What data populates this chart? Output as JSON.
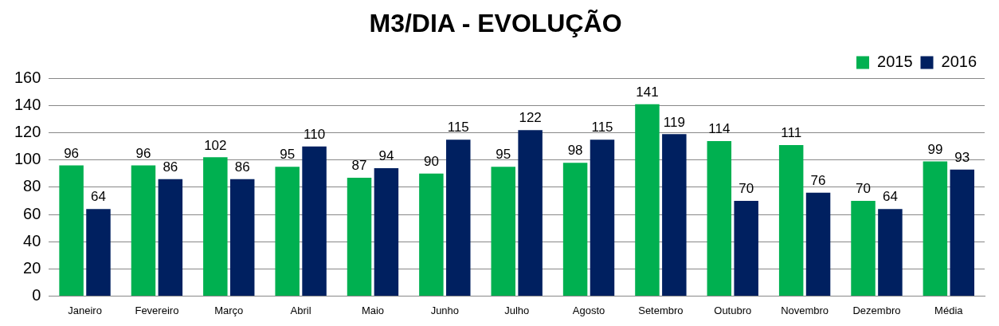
{
  "chart_data": {
    "type": "bar",
    "title": "M3/DIA - EVOLUÇÃO",
    "categories": [
      "Janeiro",
      "Fevereiro",
      "Março",
      "Abril",
      "Maio",
      "Junho",
      "Julho",
      "Agosto",
      "Setembro",
      "Outubro",
      "Novembro",
      "Dezembro",
      "Média"
    ],
    "series": [
      {
        "name": "2015",
        "color": "#00b050",
        "values": [
          96,
          96,
          102,
          95,
          87,
          90,
          95,
          98,
          141,
          114,
          111,
          70,
          99
        ]
      },
      {
        "name": "2016",
        "color": "#002060",
        "values": [
          64,
          86,
          86,
          110,
          94,
          115,
          122,
          115,
          119,
          70,
          76,
          64,
          93
        ]
      }
    ],
    "ylim": [
      0,
      160
    ],
    "yticks": [
      0,
      20,
      40,
      60,
      80,
      100,
      120,
      140,
      160
    ],
    "grid": "y",
    "legend": "top right",
    "data_labels": true
  }
}
